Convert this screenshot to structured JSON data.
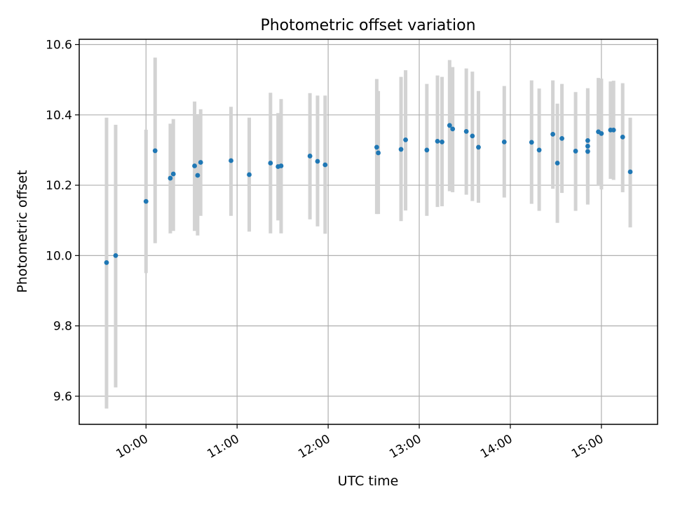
{
  "chart_data": {
    "type": "scatter",
    "title": "Photometric offset variation",
    "xlabel": "UTC time",
    "ylabel": "Photometric offset",
    "xlim": [
      "09:16",
      "15:37"
    ],
    "ylim": [
      9.52,
      10.615
    ],
    "x_ticks": [
      "10:00",
      "11:00",
      "12:00",
      "13:00",
      "14:00",
      "15:00"
    ],
    "y_ticks": [
      "9.6",
      "9.8",
      "10.0",
      "10.2",
      "10.4",
      "10.6"
    ],
    "grid": true,
    "colors": {
      "point": "#1f77b4",
      "errorbar": "#d3d3d3",
      "grid": "#b0b0b0"
    },
    "series": [
      {
        "points": [
          {
            "x": "09:34",
            "y": 9.98,
            "ylow": 9.565,
            "yhigh": 10.392
          },
          {
            "x": "09:40",
            "y": 10.0,
            "ylow": 9.625,
            "yhigh": 10.372
          },
          {
            "x": "10:00",
            "y": 10.154,
            "ylow": 9.95,
            "yhigh": 10.358
          },
          {
            "x": "10:06",
            "y": 10.298,
            "ylow": 10.035,
            "yhigh": 10.563
          },
          {
            "x": "10:16",
            "y": 10.22,
            "ylow": 10.063,
            "yhigh": 10.375
          },
          {
            "x": "10:18",
            "y": 10.232,
            "ylow": 10.07,
            "yhigh": 10.388
          },
          {
            "x": "10:32",
            "y": 10.255,
            "ylow": 10.07,
            "yhigh": 10.438
          },
          {
            "x": "10:34",
            "y": 10.228,
            "ylow": 10.057,
            "yhigh": 10.398
          },
          {
            "x": "10:36",
            "y": 10.265,
            "ylow": 10.113,
            "yhigh": 10.416
          },
          {
            "x": "10:56",
            "y": 10.27,
            "ylow": 10.113,
            "yhigh": 10.423
          },
          {
            "x": "11:08",
            "y": 10.23,
            "ylow": 10.068,
            "yhigh": 10.392
          },
          {
            "x": "11:22",
            "y": 10.263,
            "ylow": 10.063,
            "yhigh": 10.463
          },
          {
            "x": "11:27",
            "y": 10.253,
            "ylow": 10.1,
            "yhigh": 10.405
          },
          {
            "x": "11:29",
            "y": 10.255,
            "ylow": 10.063,
            "yhigh": 10.445
          },
          {
            "x": "11:48",
            "y": 10.283,
            "ylow": 10.103,
            "yhigh": 10.462
          },
          {
            "x": "11:53",
            "y": 10.268,
            "ylow": 10.083,
            "yhigh": 10.455
          },
          {
            "x": "11:58",
            "y": 10.258,
            "ylow": 10.062,
            "yhigh": 10.455
          },
          {
            "x": "12:32",
            "y": 10.308,
            "ylow": 10.118,
            "yhigh": 10.502
          },
          {
            "x": "12:33",
            "y": 10.292,
            "ylow": 10.118,
            "yhigh": 10.468
          },
          {
            "x": "12:48",
            "y": 10.302,
            "ylow": 10.098,
            "yhigh": 10.508
          },
          {
            "x": "12:51",
            "y": 10.329,
            "ylow": 10.128,
            "yhigh": 10.527
          },
          {
            "x": "13:05",
            "y": 10.3,
            "ylow": 10.113,
            "yhigh": 10.488
          },
          {
            "x": "13:12",
            "y": 10.325,
            "ylow": 10.138,
            "yhigh": 10.512
          },
          {
            "x": "13:15",
            "y": 10.323,
            "ylow": 10.14,
            "yhigh": 10.508
          },
          {
            "x": "13:20",
            "y": 10.37,
            "ylow": 10.183,
            "yhigh": 10.556
          },
          {
            "x": "13:22",
            "y": 10.36,
            "ylow": 10.18,
            "yhigh": 10.536
          },
          {
            "x": "13:31",
            "y": 10.353,
            "ylow": 10.173,
            "yhigh": 10.532
          },
          {
            "x": "13:35",
            "y": 10.34,
            "ylow": 10.155,
            "yhigh": 10.523
          },
          {
            "x": "13:39",
            "y": 10.308,
            "ylow": 10.15,
            "yhigh": 10.468
          },
          {
            "x": "13:56",
            "y": 10.323,
            "ylow": 10.165,
            "yhigh": 10.482
          },
          {
            "x": "14:14",
            "y": 10.322,
            "ylow": 10.147,
            "yhigh": 10.498
          },
          {
            "x": "14:19",
            "y": 10.3,
            "ylow": 10.127,
            "yhigh": 10.475
          },
          {
            "x": "14:28",
            "y": 10.345,
            "ylow": 10.19,
            "yhigh": 10.498
          },
          {
            "x": "14:31",
            "y": 10.263,
            "ylow": 10.093,
            "yhigh": 10.432
          },
          {
            "x": "14:34",
            "y": 10.333,
            "ylow": 10.178,
            "yhigh": 10.488
          },
          {
            "x": "14:43",
            "y": 10.297,
            "ylow": 10.127,
            "yhigh": 10.465
          },
          {
            "x": "14:51",
            "y": 10.311,
            "ylow": 10.145,
            "yhigh": 10.476
          },
          {
            "x": "14:51",
            "y": 10.296,
            "ylow": 10.15,
            "yhigh": 10.44
          },
          {
            "x": "14:51",
            "y": 10.327,
            "ylow": 10.183,
            "yhigh": 10.47
          },
          {
            "x": "14:58",
            "y": 10.352,
            "ylow": 10.198,
            "yhigh": 10.505
          },
          {
            "x": "15:00",
            "y": 10.347,
            "ylow": 10.188,
            "yhigh": 10.503
          },
          {
            "x": "15:06",
            "y": 10.357,
            "ylow": 10.218,
            "yhigh": 10.495
          },
          {
            "x": "15:08",
            "y": 10.357,
            "ylow": 10.215,
            "yhigh": 10.497
          },
          {
            "x": "15:14",
            "y": 10.337,
            "ylow": 10.18,
            "yhigh": 10.49
          },
          {
            "x": "15:19",
            "y": 10.238,
            "ylow": 10.08,
            "yhigh": 10.392
          }
        ]
      }
    ]
  }
}
